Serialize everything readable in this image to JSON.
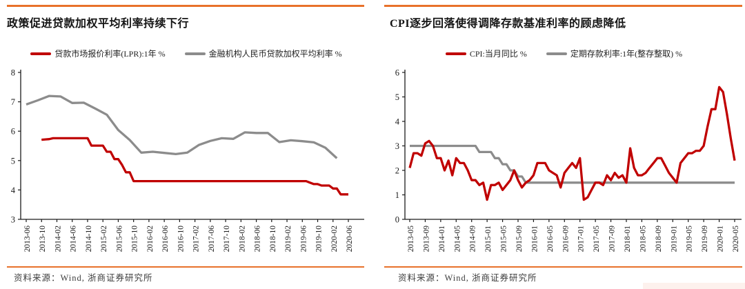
{
  "colors": {
    "accent_orange": "#e8712a",
    "series_red": "#c00000",
    "series_gray": "#8c8c8c",
    "axis": "#1a1a1a",
    "title_text": "#141414",
    "source_text": "#3d3d3d"
  },
  "panels": [
    {
      "title": "政策促进贷款加权平均利率持续下行",
      "source": "资料来源：Wind, 浙商证券研究所",
      "legend": [
        {
          "label": "贷款市场报价利率(LPR):1年 %",
          "color": "#c00000"
        },
        {
          "label": "金融机构人民币贷款加权平均利率 %",
          "color": "#8c8c8c"
        }
      ],
      "chart_data": {
        "type": "line",
        "title": "政策促进贷款加权平均利率持续下行",
        "xlabel": "",
        "ylabel": "",
        "grid": false,
        "legend_position": "top",
        "x_unit": "month",
        "x_start": "2013-06",
        "x_end": "2020-06",
        "x_total_points": 85,
        "tick_every_months": 4,
        "tick_labels": [
          "2013-06",
          "2013-10",
          "2014-02",
          "2014-06",
          "2014-10",
          "2015-02",
          "2015-06",
          "2015-10",
          "2016-02",
          "2016-06",
          "2016-10",
          "2017-02",
          "2017-06",
          "2017-10",
          "2018-02",
          "2018-06",
          "2018-10",
          "2019-02",
          "2019-06",
          "2019-10",
          "2020-02",
          "2020-06"
        ],
        "ylim": [
          3,
          8
        ],
        "y_ticks": [
          3,
          4,
          5,
          6,
          7,
          8
        ],
        "series": [
          {
            "name": "贷款市场报价利率(LPR):1年 %",
            "color": "#c00000",
            "start_month_index": 4,
            "step_months": 1,
            "values": [
              5.71,
              5.72,
              5.73,
              5.76,
              5.76,
              5.76,
              5.76,
              5.76,
              5.76,
              5.76,
              5.76,
              5.76,
              5.76,
              5.51,
              5.51,
              5.51,
              5.51,
              5.3,
              5.3,
              5.05,
              5.05,
              4.85,
              4.6,
              4.6,
              4.3,
              4.3,
              4.3,
              4.3,
              4.3,
              4.3,
              4.3,
              4.3,
              4.3,
              4.3,
              4.3,
              4.3,
              4.3,
              4.3,
              4.3,
              4.3,
              4.3,
              4.3,
              4.3,
              4.3,
              4.3,
              4.3,
              4.3,
              4.3,
              4.3,
              4.3,
              4.3,
              4.3,
              4.3,
              4.3,
              4.3,
              4.3,
              4.3,
              4.3,
              4.3,
              4.3,
              4.3,
              4.3,
              4.3,
              4.3,
              4.3,
              4.3,
              4.3,
              4.3,
              4.3,
              4.3,
              4.25,
              4.2,
              4.2,
              4.15,
              4.15,
              4.15,
              4.05,
              4.05,
              3.85,
              3.85,
              3.85
            ]
          },
          {
            "name": "金融机构人民币贷款加权平均利率 %",
            "color": "#8c8c8c",
            "start_month_index": 0,
            "step_months": 3,
            "values": [
              6.91,
              7.05,
              7.2,
              7.18,
              6.96,
              6.97,
              6.77,
              6.56,
              6.04,
              5.7,
              5.27,
              5.3,
              5.26,
              5.22,
              5.27,
              5.53,
              5.67,
              5.76,
              5.74,
              5.96,
              5.94,
              5.94,
              5.63,
              5.69,
              5.66,
              5.62,
              5.44,
              5.08
            ]
          }
        ]
      }
    },
    {
      "title": "CPI逐步回落使得调降存款基准利率的顾虑降低",
      "source": "资料来源：Wind, 浙商证券研究所",
      "legend": [
        {
          "label": "CPI:当月同比 %",
          "color": "#c00000"
        },
        {
          "label": "定期存款利率:1年(整存整取) %",
          "color": "#8c8c8c"
        }
      ],
      "chart_data": {
        "type": "line",
        "title": "CPI逐步回落使得调降存款基准利率的顾虑降低",
        "xlabel": "",
        "ylabel": "",
        "grid": false,
        "legend_position": "top",
        "x_unit": "month",
        "x_start": "2013-05",
        "x_end": "2020-05",
        "x_total_points": 85,
        "tick_every_months": 4,
        "tick_labels": [
          "2013-05",
          "2013-09",
          "2014-01",
          "2014-05",
          "2014-09",
          "2015-01",
          "2015-05",
          "2015-09",
          "2016-01",
          "2016-05",
          "2016-09",
          "2017-01",
          "2017-05",
          "2017-09",
          "2018-01",
          "2018-05",
          "2018-09",
          "2019-01",
          "2019-05",
          "2019-09",
          "2020-01",
          "2020-05"
        ],
        "ylim": [
          0,
          6
        ],
        "y_ticks": [
          0,
          1,
          2,
          3,
          4,
          5,
          6
        ],
        "series": [
          {
            "name": "CPI:当月同比 %",
            "color": "#c00000",
            "start_month_index": 0,
            "step_months": 1,
            "values": [
              2.1,
              2.7,
              2.7,
              2.6,
              3.1,
              3.2,
              3.0,
              2.5,
              2.5,
              2.0,
              2.4,
              1.8,
              2.5,
              2.3,
              2.3,
              2.0,
              1.6,
              1.6,
              1.4,
              1.5,
              0.8,
              1.4,
              1.4,
              1.5,
              1.2,
              1.4,
              1.6,
              2.0,
              1.6,
              1.3,
              1.5,
              1.6,
              1.8,
              2.3,
              2.3,
              2.3,
              2.0,
              1.9,
              1.8,
              1.3,
              1.9,
              2.1,
              2.3,
              2.1,
              2.5,
              0.8,
              0.9,
              1.2,
              1.5,
              1.5,
              1.4,
              1.8,
              1.6,
              1.9,
              1.7,
              1.8,
              1.5,
              2.9,
              2.1,
              1.8,
              1.8,
              1.9,
              2.1,
              2.3,
              2.5,
              2.5,
              2.2,
              1.9,
              1.7,
              1.5,
              2.3,
              2.5,
              2.7,
              2.7,
              2.8,
              2.8,
              3.0,
              3.8,
              4.5,
              4.5,
              5.4,
              5.2,
              4.3,
              3.3,
              2.4
            ]
          },
          {
            "name": "定期存款利率:1年(整存整取) %",
            "color": "#8c8c8c",
            "start_month_index": 0,
            "step_months": 1,
            "values": [
              3.0,
              3.0,
              3.0,
              3.0,
              3.0,
              3.0,
              3.0,
              3.0,
              3.0,
              3.0,
              3.0,
              3.0,
              3.0,
              3.0,
              3.0,
              3.0,
              3.0,
              3.0,
              2.75,
              2.75,
              2.75,
              2.75,
              2.5,
              2.5,
              2.25,
              2.25,
              2.0,
              2.0,
              1.75,
              1.75,
              1.5,
              1.5,
              1.5,
              1.5,
              1.5,
              1.5,
              1.5,
              1.5,
              1.5,
              1.5,
              1.5,
              1.5,
              1.5,
              1.5,
              1.5,
              1.5,
              1.5,
              1.5,
              1.5,
              1.5,
              1.5,
              1.5,
              1.5,
              1.5,
              1.5,
              1.5,
              1.5,
              1.5,
              1.5,
              1.5,
              1.5,
              1.5,
              1.5,
              1.5,
              1.5,
              1.5,
              1.5,
              1.5,
              1.5,
              1.5,
              1.5,
              1.5,
              1.5,
              1.5,
              1.5,
              1.5,
              1.5,
              1.5,
              1.5,
              1.5,
              1.5,
              1.5,
              1.5,
              1.5,
              1.5
            ]
          }
        ]
      }
    }
  ]
}
